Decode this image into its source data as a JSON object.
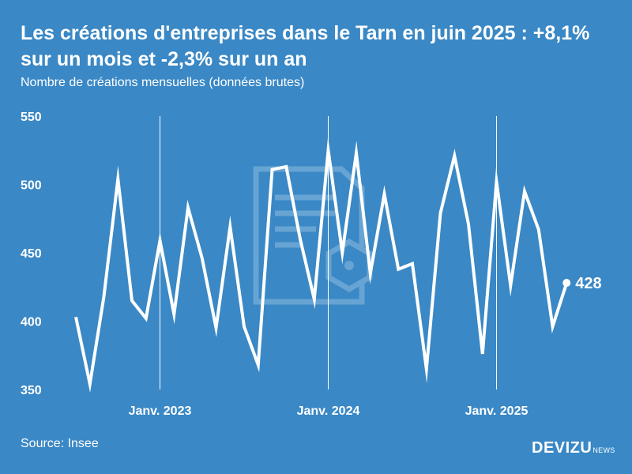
{
  "header": {
    "title": "Les créations d'entreprises dans le Tarn en juin 2025 : +8,1% sur un mois et -2,3% sur un an",
    "subtitle": "Nombre de créations mensuelles (données brutes)"
  },
  "footer": {
    "source": "Source: Insee",
    "logo_main": "DEVIZU",
    "logo_sub": "NEWS"
  },
  "colors": {
    "background": "#3a88c5",
    "line": "#ffffff",
    "watermark": "#6fa9d6"
  },
  "chart_data": {
    "type": "line",
    "title": "Les créations d'entreprises dans le Tarn en juin 2025 : +8,1% sur un mois et -2,3% sur un an",
    "subtitle": "Nombre de créations mensuelles (données brutes)",
    "ylim": [
      350,
      550
    ],
    "yticks": [
      "550",
      "500",
      "450",
      "400",
      "350"
    ],
    "xticks": [
      {
        "label": "Janv. 2023",
        "index": 6
      },
      {
        "label": "Janv. 2024",
        "index": 18
      },
      {
        "label": "Janv. 2025",
        "index": 30
      }
    ],
    "x": [
      "2022-07",
      "2022-08",
      "2022-09",
      "2022-10",
      "2022-11",
      "2022-12",
      "2023-01",
      "2023-02",
      "2023-03",
      "2023-04",
      "2023-05",
      "2023-06",
      "2023-07",
      "2023-08",
      "2023-09",
      "2023-10",
      "2023-11",
      "2023-12",
      "2024-01",
      "2024-02",
      "2024-03",
      "2024-04",
      "2024-05",
      "2024-06",
      "2024-07",
      "2024-08",
      "2024-09",
      "2024-10",
      "2024-11",
      "2024-12",
      "2025-01",
      "2025-02",
      "2025-03",
      "2025-04",
      "2025-05",
      "2025-06"
    ],
    "values": [
      403,
      354,
      418,
      504,
      415,
      402,
      459,
      405,
      483,
      446,
      395,
      469,
      396,
      368,
      511,
      513,
      460,
      416,
      525,
      450,
      523,
      435,
      493,
      438,
      442,
      365,
      479,
      521,
      471,
      376,
      502,
      426,
      495,
      467,
      396,
      428
    ],
    "last_label": "428",
    "grid": false,
    "vertical_markers": [
      "Janv. 2023",
      "Janv. 2024",
      "Janv. 2025"
    ]
  }
}
